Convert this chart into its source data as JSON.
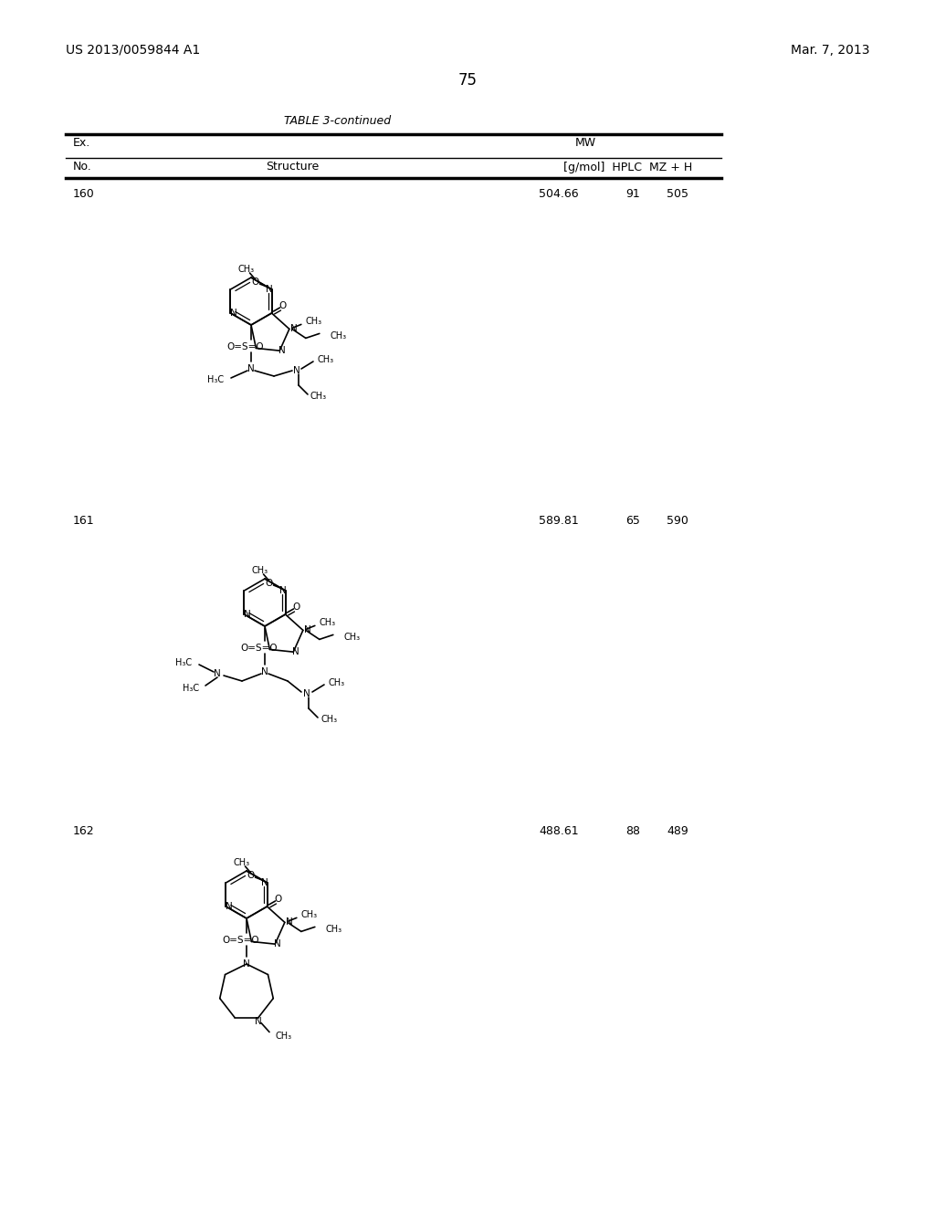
{
  "page_left": "US 2013/0059844 A1",
  "page_right": "Mar. 7, 2013",
  "page_num": "75",
  "table_title": "TABLE 3-continued",
  "col1": "Ex.",
  "col2": "No.",
  "col3": "Structure",
  "col4a": "MW",
  "col4b": "[g/mol]  HPLC  MZ + H",
  "rows": [
    {
      "no": "160",
      "mw": "504.66",
      "hplc": "91",
      "mz": "505"
    },
    {
      "no": "161",
      "mw": "589.81",
      "hplc": "65",
      "mz": "590"
    },
    {
      "no": "162",
      "mw": "488.61",
      "hplc": "88",
      "mz": "489"
    }
  ]
}
